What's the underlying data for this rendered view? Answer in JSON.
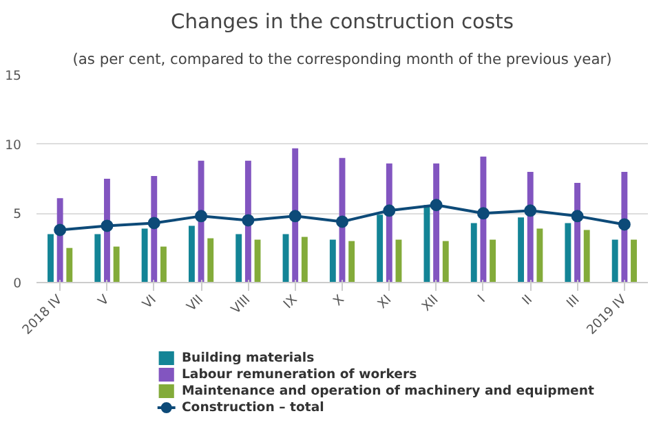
{
  "chart_data": {
    "type": "bar",
    "title": "Changes in the construction costs",
    "subtitle": "(as per cent, compared to the corresponding month of the previous year)",
    "categories": [
      "2018 IV",
      "V",
      "VI",
      "VII",
      "VIII",
      "IX",
      "X",
      "XI",
      "XII",
      "I",
      "II",
      "III",
      "2019 IV"
    ],
    "series": [
      {
        "name": "Building materials",
        "color": "#138496",
        "values": [
          3.5,
          3.5,
          3.9,
          4.1,
          3.5,
          3.5,
          3.1,
          4.9,
          5.6,
          4.3,
          4.7,
          4.3,
          3.1
        ]
      },
      {
        "name": "Labour remuneration of workers",
        "color": "#8255c0",
        "values": [
          6.1,
          7.5,
          7.7,
          8.8,
          8.8,
          9.7,
          9.0,
          8.6,
          8.6,
          9.1,
          8.0,
          7.2,
          8.0
        ]
      },
      {
        "name": "Maintenance and operation of machinery and equipment",
        "color": "#83ab3a",
        "values": [
          2.5,
          2.6,
          2.6,
          3.2,
          3.1,
          3.3,
          3.0,
          3.1,
          3.0,
          3.1,
          3.9,
          3.8,
          3.1
        ]
      },
      {
        "name": "Construction – total",
        "color": "#0d4a78",
        "type": "line",
        "marker": "circle",
        "values": [
          3.8,
          4.1,
          4.3,
          4.8,
          4.5,
          4.8,
          4.4,
          5.2,
          5.6,
          5.0,
          5.2,
          4.8,
          4.2
        ]
      }
    ],
    "ylim": [
      0,
      15
    ],
    "yticks": [
      0,
      5,
      10,
      15
    ],
    "grid": "y",
    "legend": "bottom"
  }
}
